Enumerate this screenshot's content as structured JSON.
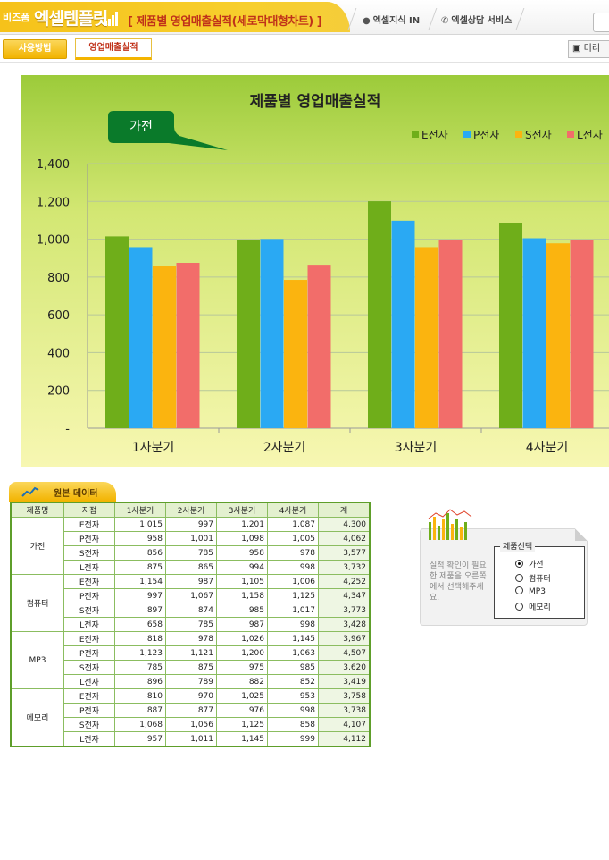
{
  "header": {
    "logo_small": "비즈폼",
    "logo_main": "엑셀템플릿",
    "title": "[ 제품별 영업매출실적(세로막대형차트) ]",
    "links": [
      {
        "label": "엑셀지식 IN",
        "icon": "lightbulb-icon"
      },
      {
        "label": "엑셀상담 서비스",
        "icon": "phone-icon"
      }
    ]
  },
  "toolbar": {
    "howto_label": "사용방법",
    "active_tab_label": "영업매출실적",
    "preview_label": "미리"
  },
  "chart_data": {
    "type": "bar",
    "title": "제품별 영업매출실적",
    "callout": "가전",
    "categories": [
      "1사분기",
      "2사분기",
      "3사분기",
      "4사분기"
    ],
    "series": [
      {
        "name": "E전자",
        "color": "#6fae1a",
        "values": [
          1015,
          997,
          1201,
          1087
        ]
      },
      {
        "name": "P전자",
        "color": "#2aa9f3",
        "values": [
          958,
          1001,
          1098,
          1005
        ]
      },
      {
        "name": "S전자",
        "color": "#fbb40f",
        "values": [
          856,
          785,
          958,
          978
        ]
      },
      {
        "name": "L전자",
        "color": "#f26d6a",
        "values": [
          875,
          865,
          994,
          998
        ]
      }
    ],
    "yticks": [
      "-",
      "200",
      "400",
      "600",
      "800",
      "1,000",
      "1,200",
      "1,400"
    ],
    "ylim": [
      0,
      1400
    ],
    "grid": true,
    "legend": "top-right"
  },
  "source": {
    "tab_label": "원본 데이터",
    "headers": [
      "제품명",
      "지점",
      "1사분기",
      "2사분기",
      "3사분기",
      "4사분기",
      "계"
    ],
    "groups": [
      {
        "name": "가전",
        "rows": [
          [
            "E전자",
            "1,015",
            "997",
            "1,201",
            "1,087",
            "4,300"
          ],
          [
            "P전자",
            "958",
            "1,001",
            "1,098",
            "1,005",
            "4,062"
          ],
          [
            "S전자",
            "856",
            "785",
            "958",
            "978",
            "3,577"
          ],
          [
            "L전자",
            "875",
            "865",
            "994",
            "998",
            "3,732"
          ]
        ]
      },
      {
        "name": "컴퓨터",
        "rows": [
          [
            "E전자",
            "1,154",
            "987",
            "1,105",
            "1,006",
            "4,252"
          ],
          [
            "P전자",
            "997",
            "1,067",
            "1,158",
            "1,125",
            "4,347"
          ],
          [
            "S전자",
            "897",
            "874",
            "985",
            "1,017",
            "3,773"
          ],
          [
            "L전자",
            "658",
            "785",
            "987",
            "998",
            "3,428"
          ]
        ]
      },
      {
        "name": "MP3",
        "rows": [
          [
            "E전자",
            "818",
            "978",
            "1,026",
            "1,145",
            "3,967"
          ],
          [
            "P전자",
            "1,123",
            "1,121",
            "1,200",
            "1,063",
            "4,507"
          ],
          [
            "S전자",
            "785",
            "875",
            "975",
            "985",
            "3,620"
          ],
          [
            "L전자",
            "896",
            "789",
            "882",
            "852",
            "3,419"
          ]
        ]
      },
      {
        "name": "메모리",
        "rows": [
          [
            "E전자",
            "810",
            "970",
            "1,025",
            "953",
            "3,758"
          ],
          [
            "P전자",
            "887",
            "877",
            "976",
            "998",
            "3,738"
          ],
          [
            "S전자",
            "1,068",
            "1,056",
            "1,125",
            "858",
            "4,107"
          ],
          [
            "L전자",
            "957",
            "1,011",
            "1,145",
            "999",
            "4,112"
          ]
        ]
      }
    ]
  },
  "selector": {
    "legend": "제품선택",
    "description": "실적 확인이 필요한 제품을 오른쪽에서 선택해주세요.",
    "options": [
      "가전",
      "컴퓨터",
      "MP3",
      "메모리"
    ],
    "selected": "가전"
  }
}
